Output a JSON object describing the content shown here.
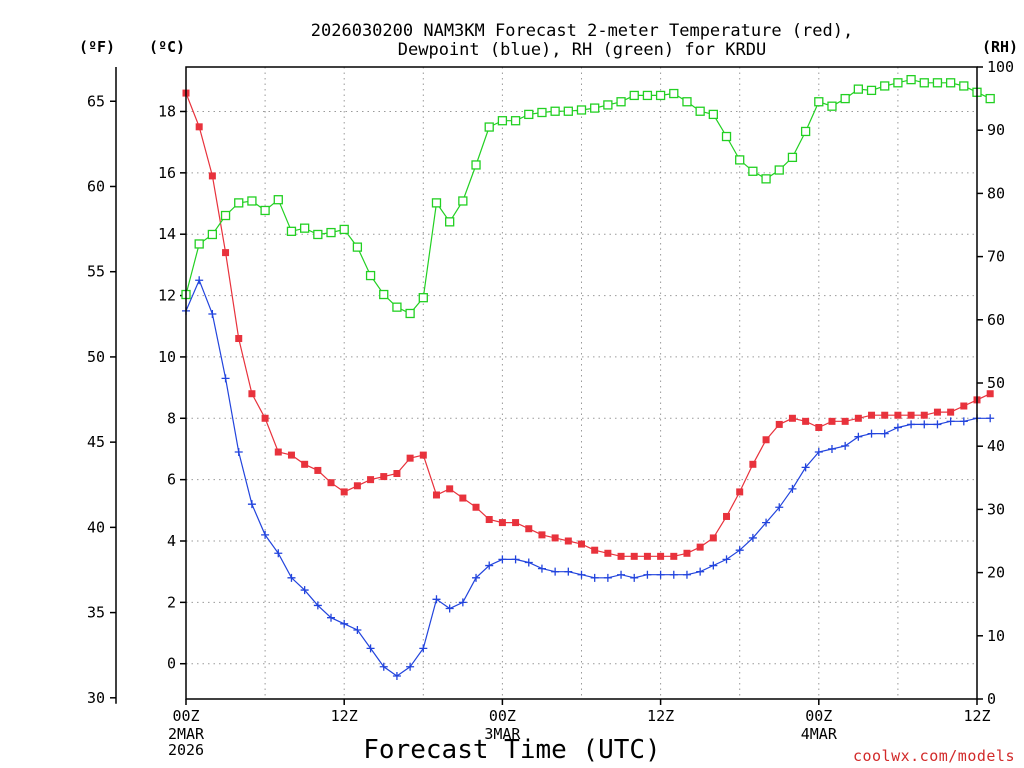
{
  "chart_data": {
    "type": "line",
    "title_line1": "2026030200 NAM3KM Forecast 2-meter Temperature (red),",
    "title_line2": "Dewpoint (blue), RH (green) for KRDU",
    "xlabel": "Forecast Time (UTC)",
    "credit": "coolwx.com/models",
    "unit_f": "(ºF)",
    "unit_c": "(ºC)",
    "unit_rh": "(RH)",
    "x_ticks": [
      "00Z",
      "12Z",
      "00Z",
      "12Z",
      "00Z",
      "12Z"
    ],
    "x_tick_hours": [
      0,
      12,
      24,
      36,
      48,
      60
    ],
    "date_labels": [
      {
        "hour": 0,
        "lines": [
          "2MAR",
          "2026"
        ]
      },
      {
        "hour": 24,
        "lines": [
          "3MAR"
        ]
      },
      {
        "hour": 48,
        "lines": [
          "4MAR"
        ]
      }
    ],
    "x_range": [
      0,
      60
    ],
    "y_left_c_range": [
      -1.15,
      19.45
    ],
    "y_left_c_ticks": [
      0,
      2,
      4,
      6,
      8,
      10,
      12,
      14,
      16,
      18
    ],
    "y_left_f_ticks": [
      30,
      35,
      40,
      45,
      50,
      55,
      60,
      65
    ],
    "y_right_rh_range": [
      0,
      100
    ],
    "y_right_rh_ticks": [
      0,
      10,
      20,
      30,
      40,
      50,
      60,
      70,
      80,
      90,
      100
    ],
    "series": [
      {
        "name": "2-meter Temperature",
        "color": "#e8323c",
        "axis": "celsius",
        "marker": "filled-square",
        "values": [
          18.6,
          17.5,
          15.9,
          13.4,
          10.6,
          8.8,
          8.0,
          6.9,
          6.8,
          6.5,
          6.3,
          5.9,
          5.6,
          5.8,
          6.0,
          6.1,
          6.2,
          6.7,
          6.8,
          5.5,
          5.7,
          5.4,
          5.1,
          4.7,
          4.6,
          4.6,
          4.4,
          4.2,
          4.1,
          4.0,
          3.9,
          3.7,
          3.6,
          3.5,
          3.5,
          3.5,
          3.5,
          3.5,
          3.6,
          3.8,
          4.1,
          4.8,
          5.6,
          6.5,
          7.3,
          7.8,
          8.0,
          7.9,
          7.7,
          7.9,
          7.9,
          8.0,
          8.1,
          8.1,
          8.1,
          8.1,
          8.1,
          8.2,
          8.2,
          8.4,
          8.6,
          8.8
        ]
      },
      {
        "name": "Dewpoint",
        "color": "#2244dd",
        "axis": "celsius",
        "marker": "plus",
        "values": [
          11.5,
          12.5,
          11.4,
          9.3,
          6.9,
          5.2,
          4.2,
          3.6,
          2.8,
          2.4,
          1.9,
          1.5,
          1.3,
          1.1,
          0.5,
          -0.1,
          -0.4,
          -0.1,
          0.5,
          2.1,
          1.8,
          2.0,
          2.8,
          3.2,
          3.4,
          3.4,
          3.3,
          3.1,
          3.0,
          3.0,
          2.9,
          2.8,
          2.8,
          2.9,
          2.8,
          2.9,
          2.9,
          2.9,
          2.9,
          3.0,
          3.2,
          3.4,
          3.7,
          4.1,
          4.6,
          5.1,
          5.7,
          6.4,
          6.9,
          7.0,
          7.1,
          7.4,
          7.5,
          7.5,
          7.7,
          7.8,
          7.8,
          7.8,
          7.9,
          7.9,
          8.0,
          8.0
        ]
      },
      {
        "name": "RH",
        "color": "#22d022",
        "axis": "rh",
        "marker": "open-square",
        "values": [
          64,
          72,
          73.5,
          76.5,
          78.5,
          78.8,
          77.3,
          79,
          74,
          74.5,
          73.5,
          73.8,
          74.3,
          71.5,
          67,
          64,
          62,
          61,
          63.5,
          78.5,
          75.5,
          78.8,
          84.5,
          90.5,
          91.5,
          91.5,
          92.5,
          92.8,
          93,
          93,
          93.2,
          93.5,
          94,
          94.5,
          95.5,
          95.5,
          95.5,
          95.8,
          94.5,
          93,
          92.5,
          89,
          85.3,
          83.5,
          82.3,
          83.7,
          85.7,
          89.8,
          94.5,
          93.8,
          95,
          96.5,
          96.3,
          97,
          97.5,
          98,
          97.5,
          97.5,
          97.5,
          97,
          96,
          95
        ]
      }
    ]
  }
}
